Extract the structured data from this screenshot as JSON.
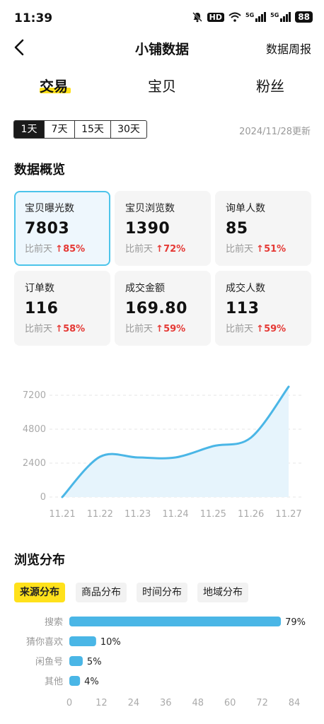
{
  "status_bar": {
    "time": "11:39",
    "hd": "HD",
    "net1": "5G",
    "net2": "5G",
    "battery": "88"
  },
  "nav": {
    "title": "小铺数据",
    "right_link": "数据周报"
  },
  "tabs": [
    {
      "label": "交易",
      "active": true
    },
    {
      "label": "宝贝",
      "active": false
    },
    {
      "label": "粉丝",
      "active": false
    }
  ],
  "range": {
    "options": [
      "1天",
      "7天",
      "15天",
      "30天"
    ],
    "selected": "1天"
  },
  "updated": "2024/11/28更新",
  "overview": {
    "title": "数据概览",
    "compare_label": "比前天",
    "cards": [
      {
        "label": "宝贝曝光数",
        "value": "7803",
        "change": "85%"
      },
      {
        "label": "宝贝浏览数",
        "value": "1390",
        "change": "72%"
      },
      {
        "label": "询单人数",
        "value": "85",
        "change": "51%"
      },
      {
        "label": "订单数",
        "value": "116",
        "change": "58%"
      },
      {
        "label": "成交金额",
        "value": "169.80",
        "change": "59%"
      },
      {
        "label": "成交人数",
        "value": "113",
        "change": "59%"
      }
    ]
  },
  "chart_data": {
    "type": "area",
    "x": [
      "11.21",
      "11.22",
      "11.23",
      "11.24",
      "11.25",
      "11.26",
      "11.27"
    ],
    "values": [
      0,
      2850,
      2800,
      2800,
      3600,
      4200,
      7803
    ],
    "yticks": [
      "0",
      "2400",
      "4800",
      "7200"
    ],
    "ylim": [
      0,
      8000
    ],
    "colors": {
      "line": "#4ab6e6",
      "fill": "#e6f4fc"
    }
  },
  "distribution": {
    "title": "浏览分布",
    "tabs": [
      {
        "label": "来源分布",
        "active": true
      },
      {
        "label": "商品分布",
        "active": false
      },
      {
        "label": "时间分布",
        "active": false
      },
      {
        "label": "地域分布",
        "active": false
      }
    ],
    "chart_data": {
      "type": "bar",
      "orientation": "horizontal",
      "categories": [
        "搜索",
        "猜你喜欢",
        "闲鱼号",
        "其他"
      ],
      "values": [
        79,
        10,
        5,
        4
      ],
      "labels": [
        "79%",
        "10%",
        "5%",
        "4%"
      ],
      "xticks": [
        "0",
        "12",
        "24",
        "36",
        "48",
        "60",
        "72",
        "84"
      ],
      "xlim": [
        0,
        84
      ],
      "color": "#4ab6e6"
    }
  }
}
